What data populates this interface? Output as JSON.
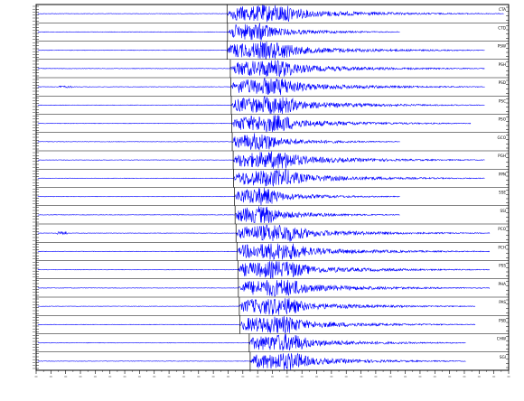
{
  "panel": {
    "type": "seismogram-record-section",
    "station_count": 20,
    "trace_color": "#0000ff",
    "frame_color": "#000000",
    "x_ticks_count": 32,
    "onset_ratios": [
      0.404,
      0.405,
      0.404,
      0.411,
      0.412,
      0.413,
      0.414,
      0.415,
      0.417,
      0.418,
      0.42,
      0.421,
      0.423,
      0.425,
      0.427,
      0.428,
      0.43,
      0.431,
      0.451,
      0.453
    ]
  },
  "stations": [
    {
      "label": "CTA",
      "length_ratio": 0.99
    },
    {
      "label": "CTD",
      "length_ratio": 0.77
    },
    {
      "label": "PSW",
      "length_ratio": 0.95
    },
    {
      "label": "PSH",
      "length_ratio": 0.95
    },
    {
      "label": "PSD",
      "length_ratio": 0.95
    },
    {
      "label": "PSC",
      "length_ratio": 0.95
    },
    {
      "label": "PSO",
      "length_ratio": 0.92
    },
    {
      "label": "GCO",
      "length_ratio": 0.77
    },
    {
      "label": "PGH",
      "length_ratio": 0.95
    },
    {
      "label": "PPN",
      "length_ratio": 0.95
    },
    {
      "label": "SSE",
      "length_ratio": 0.77
    },
    {
      "label": "SSI",
      "length_ratio": 0.77
    },
    {
      "label": "PCO",
      "length_ratio": 0.96
    },
    {
      "label": "PCH",
      "length_ratio": 0.96
    },
    {
      "label": "PSS",
      "length_ratio": 0.96
    },
    {
      "label": "PHA",
      "length_ratio": 0.96
    },
    {
      "label": "PAS",
      "length_ratio": 0.93
    },
    {
      "label": "PSB",
      "length_ratio": 0.93
    },
    {
      "label": "CHW",
      "length_ratio": 0.91
    },
    {
      "label": "SGI",
      "length_ratio": 0.91
    }
  ]
}
